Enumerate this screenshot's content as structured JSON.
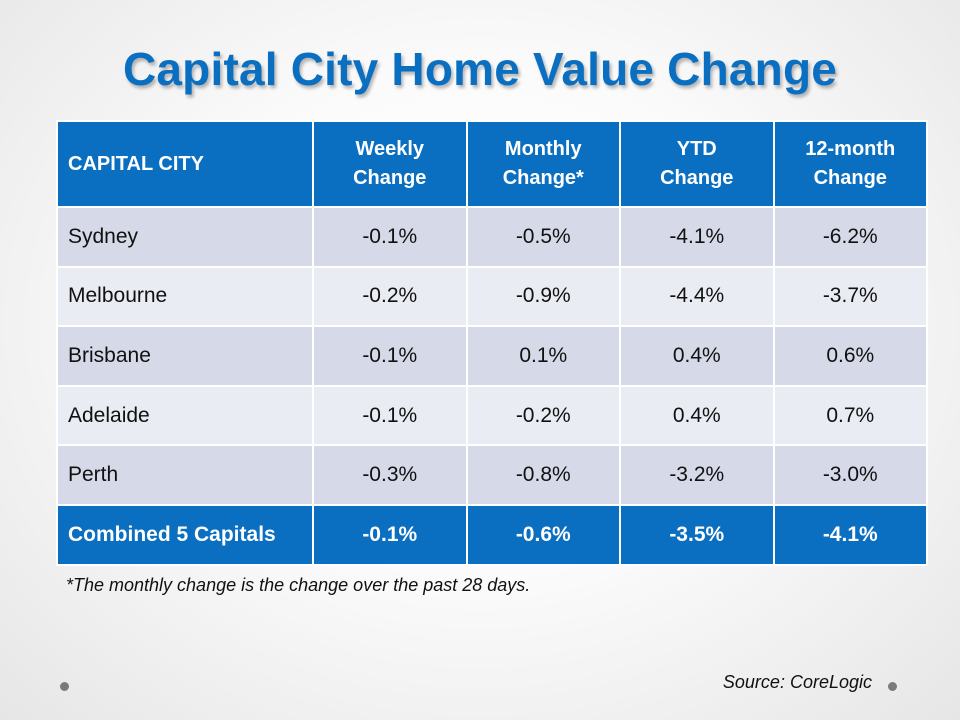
{
  "title": "Capital City Home Value Change",
  "table": {
    "headers": [
      "CAPITAL CITY",
      "Weekly\nChange",
      "Monthly\nChange*",
      "YTD\nChange",
      "12-month\nChange"
    ],
    "rows": [
      [
        "Sydney",
        "-0.1%",
        "-0.5%",
        "-4.1%",
        "-6.2%"
      ],
      [
        "Melbourne",
        "-0.2%",
        "-0.9%",
        "-4.4%",
        "-3.7%"
      ],
      [
        "Brisbane",
        "-0.1%",
        "0.1%",
        "0.4%",
        "0.6%"
      ],
      [
        "Adelaide",
        "-0.1%",
        "-0.2%",
        "0.4%",
        "0.7%"
      ],
      [
        "Perth",
        "-0.3%",
        "-0.8%",
        "-3.2%",
        "-3.0%"
      ]
    ],
    "total": [
      "Combined 5 Capitals",
      "-0.1%",
      "-0.6%",
      "-3.5%",
      "-4.1%"
    ]
  },
  "footnote": "*The monthly change is the change over the past 28 days.",
  "source": "Source: CoreLogic",
  "colors": {
    "accent": "#0b6fc1",
    "row_shade_dark": "#d5d9e8",
    "row_shade_light": "#eaecf3"
  }
}
